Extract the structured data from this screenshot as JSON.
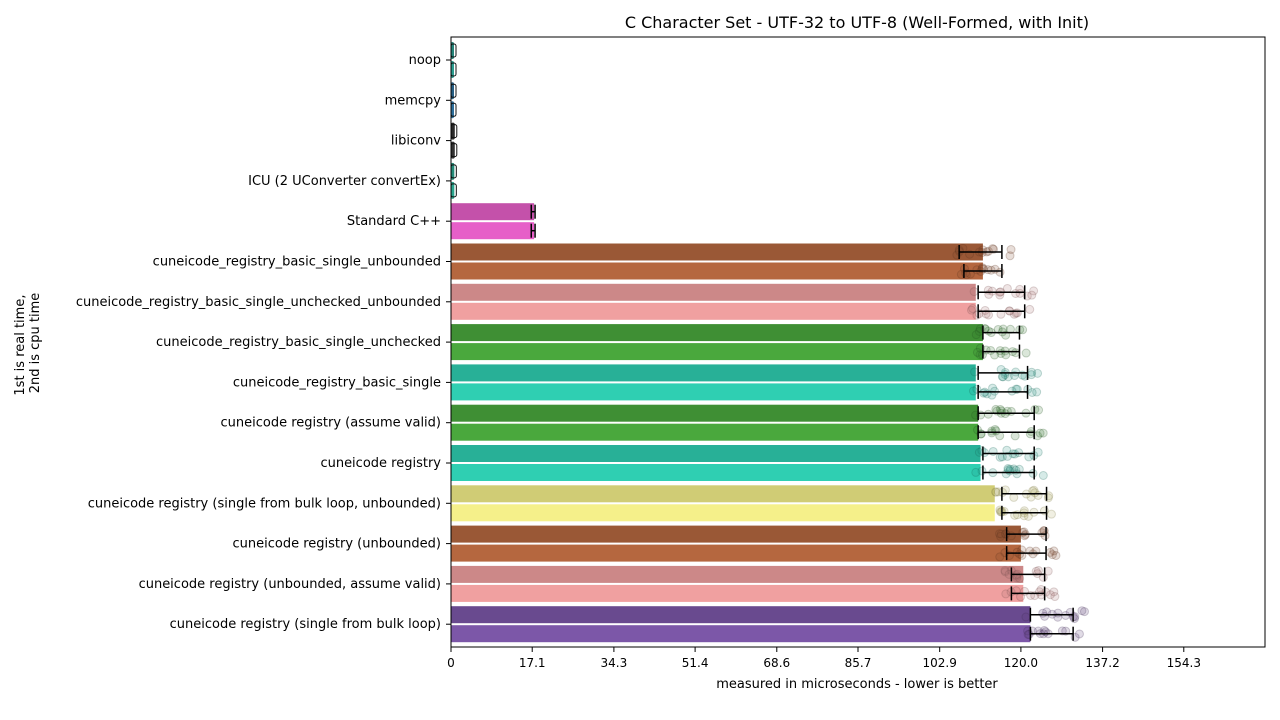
{
  "chart_data": {
    "type": "bar",
    "orientation": "horizontal",
    "title": "C Character Set - UTF-32 to UTF-8 (Well-Formed, with Init)",
    "xlabel": "measured in microseconds - lower is better",
    "ylabel_lines": [
      "1st is real time,",
      "2nd is cpu time"
    ],
    "xlim": [
      0,
      171.4
    ],
    "xticks": [
      "0",
      "17.1",
      "34.3",
      "51.4",
      "68.6",
      "85.7",
      "102.9",
      "120.0",
      "137.2",
      "154.3"
    ],
    "grid": false,
    "legend": "none",
    "categories": [
      "noop",
      "memcpy",
      "libiconv",
      "ICU (2 UConverter convertEx)",
      "Standard C++",
      "cuneicode_registry_basic_single_unbounded",
      "cuneicode_registry_basic_single_unchecked_unbounded",
      "cuneicode_registry_basic_single_unchecked",
      "cuneicode_registry_basic_single",
      "cuneicode registry (assume valid)",
      "cuneicode registry",
      "cuneicode registry (single from bulk loop, unbounded)",
      "cuneicode registry (unbounded)",
      "cuneicode registry (unbounded, assume valid)",
      "cuneicode registry (single from bulk loop)"
    ],
    "series": [
      {
        "name": "1st is real time",
        "values": [
          0.4,
          0.5,
          0.8,
          0.7,
          17.5,
          112.0,
          110.5,
          112.0,
          110.5,
          111.0,
          111.5,
          114.5,
          120.0,
          120.5,
          122.0
        ],
        "err_low": [
          null,
          null,
          null,
          null,
          16.9,
          107.0,
          111.0,
          112.0,
          111.0,
          111.0,
          112.0,
          116.0,
          117.0,
          118.0,
          122.0
        ],
        "err_high": [
          null,
          null,
          null,
          null,
          17.7,
          116.0,
          120.8,
          119.7,
          121.4,
          122.8,
          122.8,
          125.4,
          125.3,
          125.0,
          131.0
        ]
      },
      {
        "name": "2nd is cpu time",
        "values": [
          0.4,
          0.5,
          0.8,
          0.7,
          17.5,
          112.0,
          110.5,
          112.0,
          110.5,
          111.0,
          111.5,
          114.5,
          120.0,
          120.5,
          122.0
        ],
        "err_low": [
          null,
          null,
          null,
          null,
          16.9,
          108.0,
          111.0,
          112.0,
          111.0,
          111.0,
          112.0,
          116.0,
          117.0,
          118.0,
          122.0
        ],
        "err_high": [
          null,
          null,
          null,
          null,
          17.7,
          116.0,
          120.8,
          119.7,
          121.4,
          122.8,
          122.8,
          125.4,
          125.3,
          125.0,
          131.0
        ]
      }
    ],
    "colors": {
      "noop": "#2a9d8f",
      "memcpy": "#2c6e9b",
      "libiconv": "#333333",
      "ICU (2 UConverter convertEx)": "#2aa58e",
      "Standard C++": "#e65fc8",
      "cuneicode_registry_basic_single_unbounded": "#b5673f",
      "cuneicode_registry_basic_single_unchecked_unbounded": "#f0a0a0",
      "cuneicode_registry_basic_single_unchecked": "#4aa83d",
      "cuneicode_registry_basic_single": "#2fcfb2",
      "cuneicode registry (assume valid)": "#4aa83d",
      "cuneicode registry": "#2fcfb2",
      "cuneicode registry (single from bulk loop, unbounded)": "#f5f08a",
      "cuneicode registry (unbounded)": "#b5673f",
      "cuneicode registry (unbounded, assume valid)": "#f0a0a0",
      "cuneicode registry (single from bulk loop)": "#7c57a8"
    }
  }
}
